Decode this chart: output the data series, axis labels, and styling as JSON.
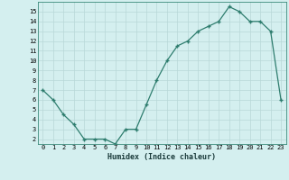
{
  "x": [
    0,
    1,
    2,
    3,
    4,
    5,
    6,
    7,
    8,
    9,
    10,
    11,
    12,
    13,
    14,
    15,
    16,
    17,
    18,
    19,
    20,
    21,
    22,
    23
  ],
  "y": [
    7,
    6,
    4.5,
    3.5,
    2,
    2,
    2,
    1.5,
    3,
    3,
    5.5,
    8,
    10,
    11.5,
    12,
    13,
    13.5,
    14,
    15.5,
    15,
    14,
    14,
    13,
    6
  ],
  "xlabel": "Humidex (Indice chaleur)",
  "line_color": "#2e7d6e",
  "marker": "+",
  "bg_color": "#d4efef",
  "grid_color": "#b8d8d8",
  "xlim": [
    -0.5,
    23.5
  ],
  "ylim": [
    1.5,
    16
  ],
  "yticks": [
    2,
    3,
    4,
    5,
    6,
    7,
    8,
    9,
    10,
    11,
    12,
    13,
    14,
    15
  ],
  "xticks": [
    0,
    1,
    2,
    3,
    4,
    5,
    6,
    7,
    8,
    9,
    10,
    11,
    12,
    13,
    14,
    15,
    16,
    17,
    18,
    19,
    20,
    21,
    22,
    23
  ]
}
